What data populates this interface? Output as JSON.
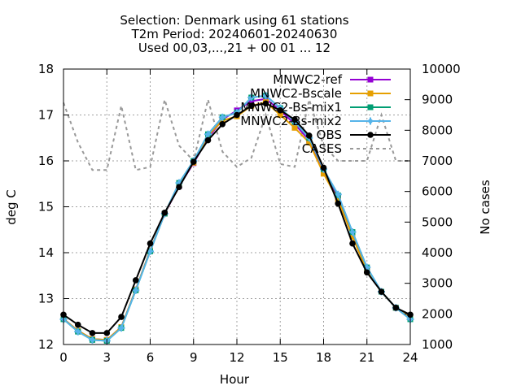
{
  "chart_data": {
    "type": "line",
    "title_lines": [
      "Selection: Denmark using    61 stations",
      "T2m   Period: 20240601-20240630",
      "Used 00,03,...,21 + 00 01 ... 12"
    ],
    "xlabel": "Hour",
    "ylabel": "deg C",
    "y2label": "No cases",
    "xlim": [
      0,
      24
    ],
    "ylim": [
      12,
      18
    ],
    "y2lim": [
      1000,
      10000
    ],
    "xticks": [
      0,
      3,
      6,
      9,
      12,
      15,
      18,
      21,
      24
    ],
    "yticks": [
      12,
      13,
      14,
      15,
      16,
      17,
      18
    ],
    "y2ticks": [
      1000,
      2000,
      3000,
      4000,
      5000,
      6000,
      7000,
      8000,
      9000,
      10000
    ],
    "grid": true,
    "legend_position": "top-right",
    "x": [
      0,
      1,
      2,
      3,
      4,
      5,
      6,
      7,
      8,
      9,
      10,
      11,
      12,
      13,
      14,
      15,
      16,
      17,
      18,
      19,
      20,
      21,
      22,
      23,
      24
    ],
    "series": [
      {
        "name": "MNWC2-ref",
        "color": "#9400d3",
        "marker": "square",
        "values": [
          12.56,
          12.3,
          12.12,
          12.1,
          12.38,
          13.2,
          14.05,
          14.85,
          15.45,
          15.95,
          16.5,
          16.9,
          17.1,
          17.3,
          17.35,
          17.1,
          16.8,
          16.45,
          15.8,
          15.2,
          14.4,
          13.65,
          13.15,
          12.8,
          12.56
        ]
      },
      {
        "name": "MNWC2-Bscale",
        "color": "#e69f00",
        "marker": "square",
        "values": [
          12.56,
          12.3,
          12.12,
          12.1,
          12.38,
          13.2,
          14.05,
          14.85,
          15.48,
          15.96,
          16.55,
          16.88,
          16.97,
          17.2,
          17.28,
          17.0,
          16.72,
          16.4,
          15.72,
          15.15,
          14.35,
          13.6,
          13.15,
          12.8,
          12.58
        ]
      },
      {
        "name": "MNWC2-Bs-mix1",
        "color": "#009e73",
        "marker": "square",
        "values": [
          12.55,
          12.28,
          12.1,
          12.08,
          12.36,
          13.18,
          14.03,
          14.85,
          15.52,
          16.0,
          16.58,
          16.95,
          17.05,
          17.38,
          17.42,
          17.15,
          16.85,
          16.5,
          15.82,
          15.25,
          14.45,
          13.68,
          13.15,
          12.8,
          12.55
        ]
      },
      {
        "name": "MNWC2-Bs-mix2",
        "color": "#56b4e9",
        "marker": "plus",
        "values": [
          12.55,
          12.28,
          12.1,
          12.08,
          12.36,
          13.18,
          14.03,
          14.85,
          15.52,
          16.0,
          16.58,
          16.95,
          17.05,
          17.38,
          17.42,
          17.15,
          16.85,
          16.5,
          15.82,
          15.27,
          14.45,
          13.68,
          13.15,
          12.8,
          12.55
        ]
      },
      {
        "name": "OBS",
        "color": "#000000",
        "marker": "circle",
        "values": [
          12.65,
          12.43,
          12.25,
          12.25,
          12.6,
          13.4,
          14.2,
          14.87,
          15.43,
          15.98,
          16.45,
          16.8,
          17.0,
          17.2,
          17.25,
          17.1,
          16.9,
          16.55,
          15.85,
          15.07,
          14.2,
          13.57,
          13.15,
          12.8,
          12.65
        ]
      },
      {
        "name": "CASES",
        "color": "#999999",
        "dashed": true,
        "axis": "y2",
        "values": [
          8900,
          7600,
          6700,
          6700,
          8800,
          6700,
          6800,
          9000,
          7500,
          7000,
          9000,
          7300,
          6800,
          7100,
          8500,
          6900,
          6800,
          9000,
          7500,
          7000,
          7000,
          7000,
          8500,
          7000,
          7000
        ]
      }
    ]
  }
}
